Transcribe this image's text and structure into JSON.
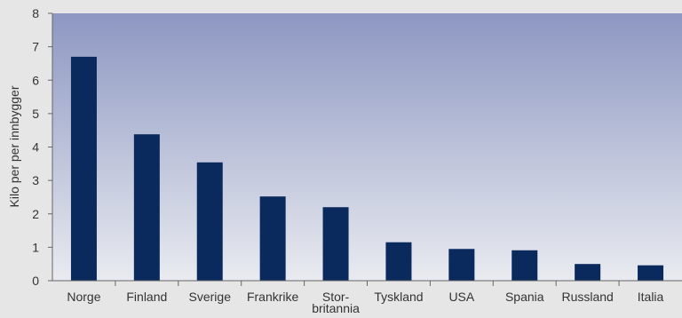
{
  "chart_data": {
    "type": "bar",
    "ylabel": "Kilo per per innbygger",
    "xlabel": "",
    "ylim": [
      0,
      8
    ],
    "yticks": [
      0,
      1,
      2,
      3,
      4,
      5,
      6,
      7,
      8
    ],
    "categories": [
      "Norge",
      "Finland",
      "Sverige",
      "Frankrike",
      "Stor-\nbritannia",
      "Tyskland",
      "USA",
      "Spania",
      "Russland",
      "Italia"
    ],
    "values": [
      6.7,
      4.38,
      3.54,
      2.52,
      2.2,
      1.15,
      0.95,
      0.91,
      0.5,
      0.46
    ],
    "grid": false,
    "legend": "none",
    "colors": {
      "bar": "#0a2a5e",
      "plot_gradient_top": "#8d97c2",
      "plot_gradient_bottom": "#e9ebf0",
      "axis": "#666666",
      "page_background": "#e6e6e6"
    }
  }
}
